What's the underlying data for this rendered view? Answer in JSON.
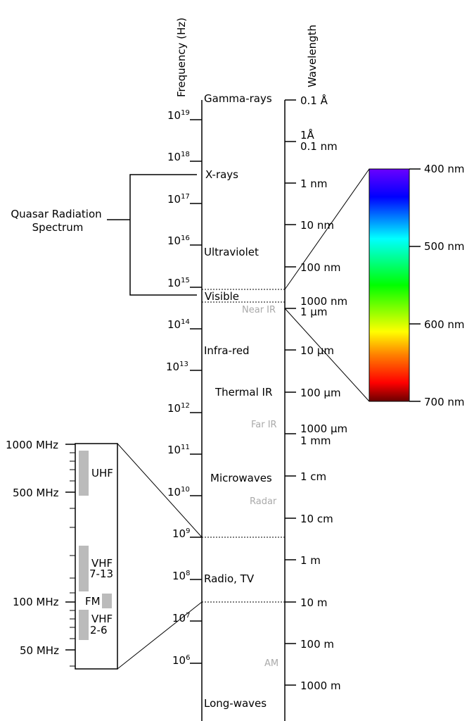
{
  "axes": {
    "frequency_title": "Frequency (Hz)",
    "wavelength_title": "Wavelength"
  },
  "frequency_ticks": [
    {
      "base": "10",
      "exp": "19"
    },
    {
      "base": "10",
      "exp": "18"
    },
    {
      "base": "10",
      "exp": "17"
    },
    {
      "base": "10",
      "exp": "16"
    },
    {
      "base": "10",
      "exp": "15"
    },
    {
      "base": "10",
      "exp": "14"
    },
    {
      "base": "10",
      "exp": "13"
    },
    {
      "base": "10",
      "exp": "12"
    },
    {
      "base": "10",
      "exp": "11"
    },
    {
      "base": "10",
      "exp": "10"
    },
    {
      "base": "10",
      "exp": "9"
    },
    {
      "base": "10",
      "exp": "8"
    },
    {
      "base": "10",
      "exp": "7"
    },
    {
      "base": "10",
      "exp": "6"
    }
  ],
  "wavelength_ticks": [
    "0.1 Å",
    "1Å",
    "0.1 nm",
    "1 nm",
    "10 nm",
    "100 nm",
    "1000 nm",
    "1 µm",
    "10 µm",
    "100 µm",
    "1000 µm",
    "1 mm",
    "1 cm",
    "10 cm",
    "1 m",
    "10 m",
    "100 m",
    "1000 m"
  ],
  "bands": [
    "Gamma-rays",
    "X-rays",
    "Ultraviolet",
    "Visible",
    "Infra-red",
    "Thermal IR",
    "Microwaves",
    "Radio, TV",
    "Long-waves"
  ],
  "sub_bands": [
    "Near IR",
    "Far IR",
    "Radar",
    "AM"
  ],
  "quasar": {
    "line1": "Quasar Radiation",
    "line2": "Spectrum"
  },
  "visible_scale": [
    "400 nm",
    "500 nm",
    "600 nm",
    "700 nm"
  ],
  "radio_scale": [
    "1000 MHz",
    "500 MHz",
    "100 MHz",
    "50 MHz"
  ],
  "radio_bands": {
    "uhf": "UHF",
    "vhf_high_1": "VHF",
    "vhf_high_2": "7-13",
    "fm": "FM",
    "vhf_low_1": "VHF",
    "vhf_low_2": "2-6"
  },
  "colors": {
    "spectrum": [
      "#6a00ff",
      "#0000ff",
      "#00ffff",
      "#00ff00",
      "#ffff00",
      "#ff8000",
      "#ff0000",
      "#6a0000"
    ],
    "sub_band_gray": "#aaaaaa",
    "radio_band_gray": "#bbbbbb"
  }
}
